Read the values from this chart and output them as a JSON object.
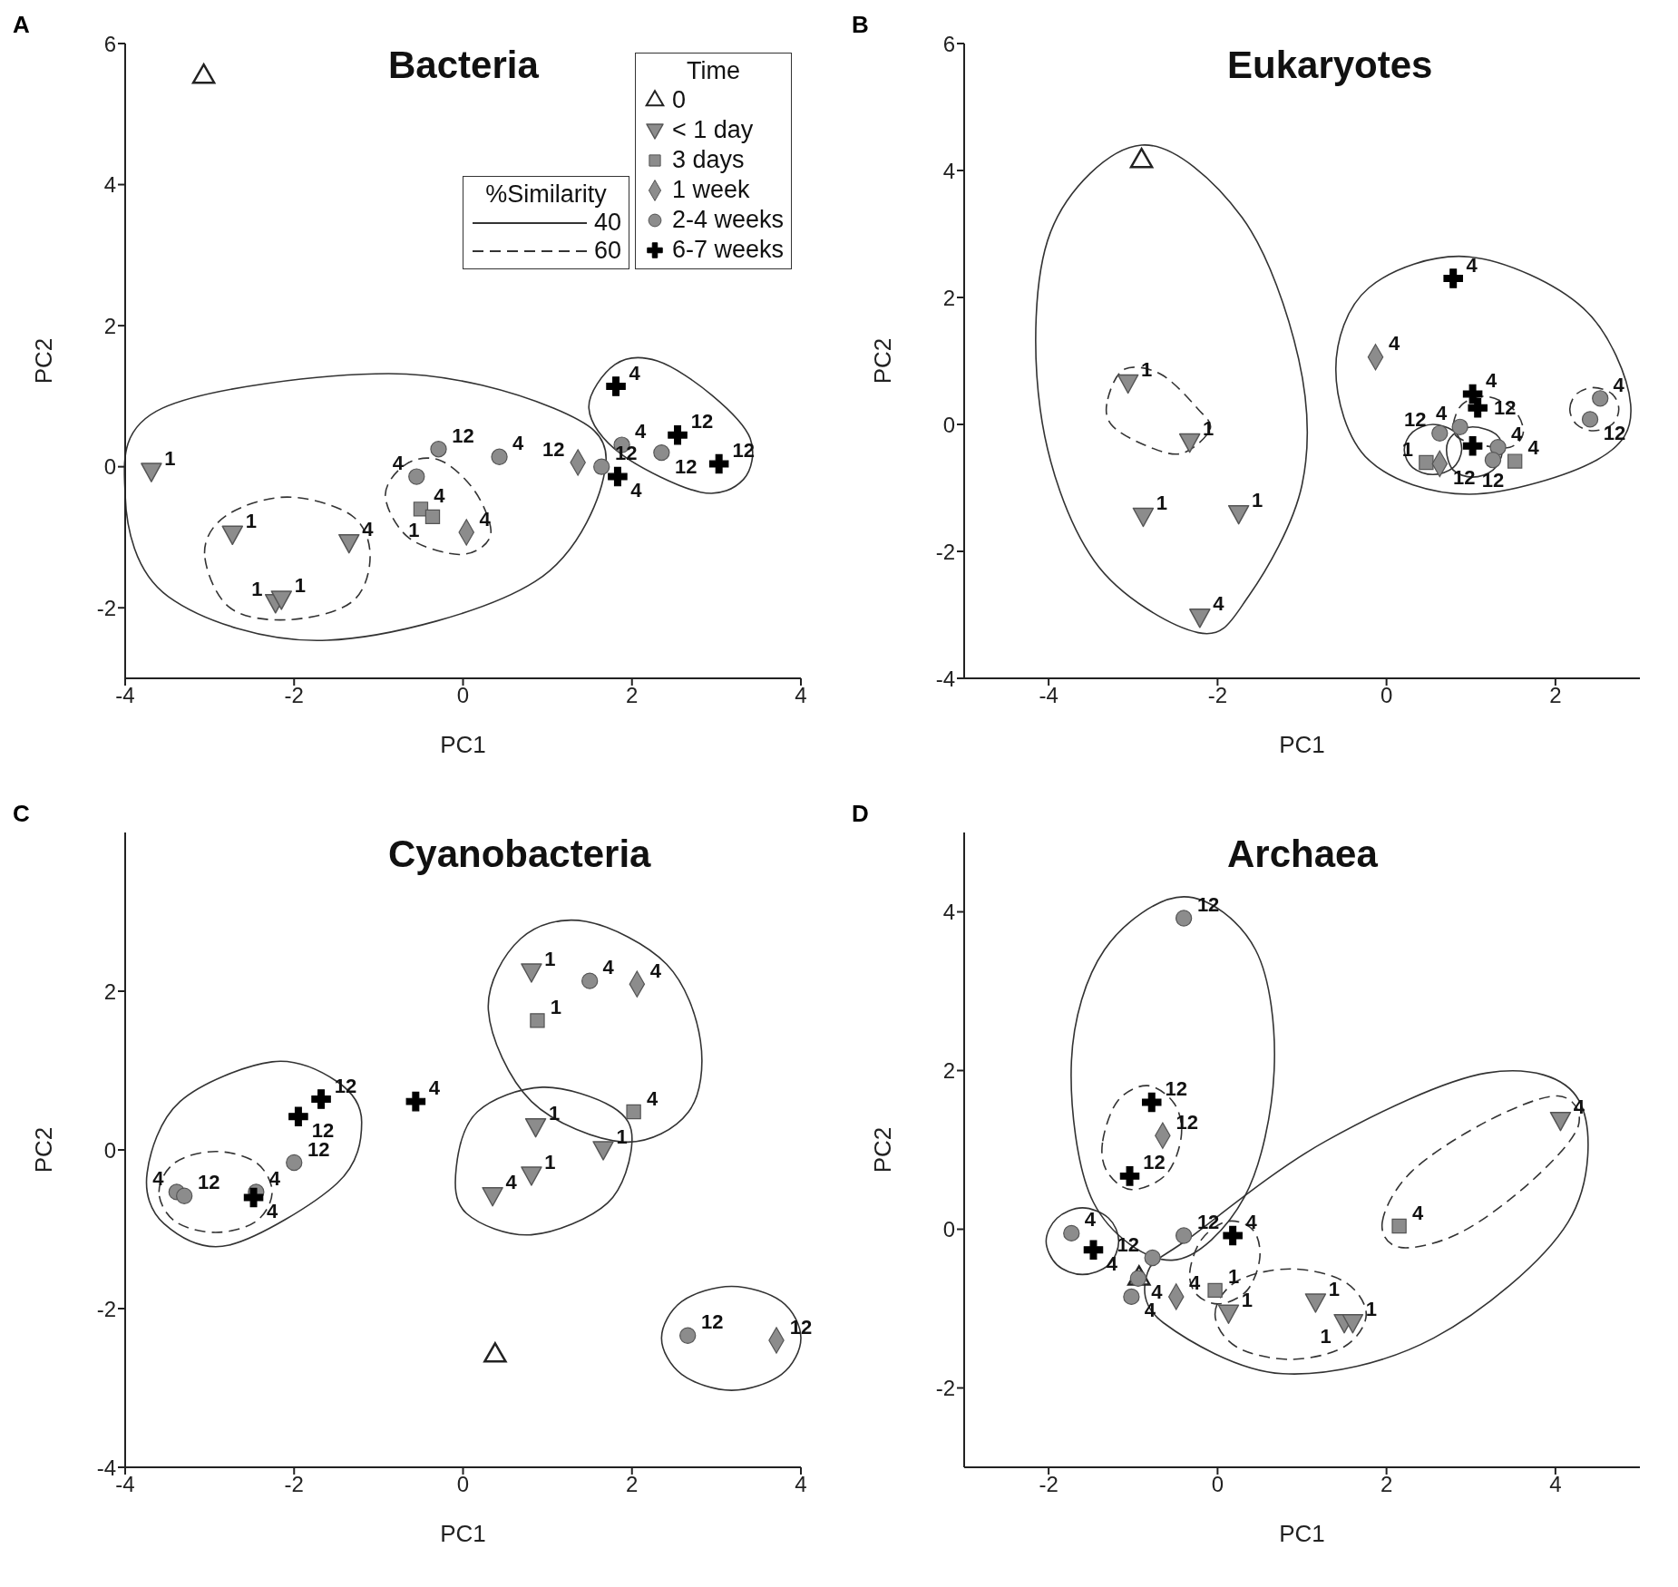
{
  "chart_data": [
    {
      "type": "scatter",
      "title": "Bacteria",
      "xlabel": "PC1",
      "ylabel": "PC2",
      "legend_title": "Time",
      "legend": "top right",
      "xlim": [
        -4,
        4
      ],
      "xticks": [
        -4,
        -2,
        0,
        2,
        4
      ],
      "ylim": [
        -3,
        6
      ],
      "yticks": [
        -2,
        0,
        2,
        4,
        6
      ],
      "annotations": [
        "A",
        "%Similarity",
        "40",
        "60",
        {
          "text": "1",
          "x": -3.69,
          "y": -0.07
        },
        {
          "text": "1",
          "x": -2.73,
          "y": -0.96
        },
        {
          "text": "4",
          "x": -1.35,
          "y": -1.08
        },
        {
          "text": "1",
          "x": -2.22,
          "y": -1.93
        },
        {
          "text": "1",
          "x": -2.15,
          "y": -1.88
        },
        {
          "text": "4",
          "x": -0.5,
          "y": -0.6
        },
        {
          "text": "1",
          "x": -0.36,
          "y": -0.71
        },
        {
          "text": "4",
          "x": 0.04,
          "y": -0.93
        },
        {
          "text": "12",
          "x": 1.36,
          "y": 0.06
        },
        {
          "text": "12",
          "x": -0.29,
          "y": 0.25
        },
        {
          "text": "4",
          "x": 0.43,
          "y": 0.14
        },
        {
          "text": "4",
          "x": -0.55,
          "y": -0.14
        },
        {
          "text": "12",
          "x": 1.64,
          "y": 0.0
        },
        {
          "text": "4",
          "x": 1.88,
          "y": 0.31
        },
        {
          "text": "12",
          "x": 2.35,
          "y": 0.2
        },
        {
          "text": "4",
          "x": 1.81,
          "y": 1.14
        },
        {
          "text": "12",
          "x": 2.54,
          "y": 0.45
        },
        {
          "text": "12",
          "x": 3.03,
          "y": 0.04
        },
        {
          "text": "4",
          "x": 1.83,
          "y": -0.14
        }
      ],
      "series": [
        {
          "name": "0",
          "marker": "triangle",
          "color": "#ffffff",
          "x": [
            -3.07
          ],
          "values": [
            5.53
          ]
        },
        {
          "name": "< 1 day",
          "marker": "triangle-down",
          "color": "#8c8c8c",
          "x": [
            -3.69,
            -2.73,
            -1.35,
            -2.22,
            -2.15
          ],
          "values": [
            -0.07,
            -0.96,
            -1.08,
            -1.93,
            -1.88
          ]
        },
        {
          "name": "3 days",
          "marker": "square",
          "color": "#8c8c8c",
          "x": [
            -0.5,
            -0.36
          ],
          "values": [
            -0.6,
            -0.71
          ]
        },
        {
          "name": "1 week",
          "marker": "diamond",
          "color": "#8c8c8c",
          "x": [
            0.04,
            1.36
          ],
          "values": [
            -0.93,
            0.06
          ]
        },
        {
          "name": "2-4 weeks",
          "marker": "circle",
          "color": "#8c8c8c",
          "x": [
            -0.29,
            0.43,
            -0.55,
            1.64,
            1.88,
            2.35
          ],
          "values": [
            0.25,
            0.14,
            -0.14,
            0.0,
            0.31,
            0.2
          ]
        },
        {
          "name": "6-7 weeks",
          "marker": "cross",
          "color": "#000000",
          "x": [
            1.81,
            2.54,
            3.03,
            1.83
          ],
          "values": [
            1.14,
            0.45,
            0.04,
            -0.14
          ]
        }
      ]
    },
    {
      "type": "scatter",
      "title": "Eukaryotes",
      "xlabel": "PC1",
      "ylabel": "PC2",
      "xlim": [
        -5,
        3
      ],
      "xticks": [
        -4,
        -2,
        0,
        2
      ],
      "ylim": [
        -4,
        6
      ],
      "yticks": [
        -4,
        -2,
        0,
        2,
        4,
        6
      ],
      "annotations": [
        "B",
        {
          "text": "1",
          "x": -3.06,
          "y": 0.65
        },
        {
          "text": "1",
          "x": -2.33,
          "y": -0.28
        },
        {
          "text": "1",
          "x": -2.88,
          "y": -1.45
        },
        {
          "text": "1",
          "x": -1.75,
          "y": -1.41
        },
        {
          "text": "4",
          "x": -2.21,
          "y": -3.04
        },
        {
          "text": "1",
          "x": 0.47,
          "y": -0.6
        },
        {
          "text": "4",
          "x": 1.52,
          "y": -0.58
        },
        {
          "text": "4",
          "x": -0.13,
          "y": 1.06
        },
        {
          "text": "12",
          "x": 0.63,
          "y": -0.62
        },
        {
          "text": "12",
          "x": 0.63,
          "y": -0.14
        },
        {
          "text": "4",
          "x": 0.87,
          "y": -0.04
        },
        {
          "text": "4",
          "x": 1.32,
          "y": -0.36
        },
        {
          "text": "12",
          "x": 1.26,
          "y": -0.56
        },
        {
          "text": "4",
          "x": 2.53,
          "y": 0.41
        },
        {
          "text": "12",
          "x": 2.41,
          "y": 0.08
        },
        {
          "text": "4",
          "x": 0.79,
          "y": 2.3
        },
        {
          "text": "4",
          "x": 1.02,
          "y": 0.48
        },
        {
          "text": "12",
          "x": 1.08,
          "y": 0.26
        }
      ],
      "series": [
        {
          "marker": "triangle",
          "color": "#ffffff",
          "x": [
            -2.9
          ],
          "values": [
            4.15
          ]
        },
        {
          "marker": "triangle-down",
          "color": "#8c8c8c",
          "x": [
            -3.06,
            -2.33,
            -2.88,
            -1.75,
            -2.21
          ],
          "values": [
            0.65,
            -0.28,
            -1.45,
            -1.41,
            -3.04
          ]
        },
        {
          "marker": "square",
          "color": "#8c8c8c",
          "x": [
            0.47,
            1.52
          ],
          "values": [
            -0.6,
            -0.58
          ]
        },
        {
          "marker": "diamond",
          "color": "#8c8c8c",
          "x": [
            -0.13,
            0.63
          ],
          "values": [
            1.06,
            -0.62
          ]
        },
        {
          "marker": "circle",
          "color": "#8c8c8c",
          "x": [
            0.63,
            0.87,
            1.32,
            1.26,
            2.53,
            2.41
          ],
          "values": [
            -0.14,
            -0.04,
            -0.36,
            -0.56,
            0.41,
            0.08
          ]
        },
        {
          "marker": "cross",
          "color": "#000000",
          "x": [
            0.79,
            1.02,
            1.08,
            1.02
          ],
          "values": [
            2.3,
            0.48,
            0.26,
            -0.34
          ]
        }
      ]
    },
    {
      "type": "scatter",
      "title": "Cyanobacteria",
      "xlabel": "PC1",
      "ylabel": "PC2",
      "xlim": [
        -4,
        4
      ],
      "xticks": [
        -4,
        -2,
        0,
        2,
        4
      ],
      "ylim": [
        -4,
        4
      ],
      "yticks": [
        -4,
        -2,
        0,
        2
      ],
      "annotations": [
        "C",
        {
          "text": "1",
          "x": 0.81,
          "y": 2.24
        },
        {
          "text": "1",
          "x": 0.86,
          "y": 0.29
        },
        {
          "text": "1",
          "x": 0.81,
          "y": -0.32
        },
        {
          "text": "4",
          "x": 0.35,
          "y": -0.58
        },
        {
          "text": "1",
          "x": 1.66,
          "y": 0.0
        },
        {
          "text": "1",
          "x": 0.88,
          "y": 1.63
        },
        {
          "text": "4",
          "x": 2.02,
          "y": 0.48
        },
        {
          "text": "4",
          "x": 2.06,
          "y": 2.09
        },
        {
          "text": "12",
          "x": 3.71,
          "y": -2.4
        },
        {
          "text": "4",
          "x": 1.5,
          "y": 2.13
        },
        {
          "text": "12",
          "x": -2.0,
          "y": -0.16
        },
        {
          "text": "4",
          "x": -3.39,
          "y": -0.53
        },
        {
          "text": "12",
          "x": -3.3,
          "y": -0.58
        },
        {
          "text": "4",
          "x": -2.45,
          "y": -0.53
        },
        {
          "text": "12",
          "x": 2.66,
          "y": -2.34
        },
        {
          "text": "12",
          "x": -1.68,
          "y": 0.64
        },
        {
          "text": "12",
          "x": -1.95,
          "y": 0.42
        },
        {
          "text": "4",
          "x": -0.56,
          "y": 0.61
        },
        {
          "text": "4",
          "x": -2.48,
          "y": -0.6
        }
      ],
      "series": [
        {
          "marker": "triangle",
          "color": "#ffffff",
          "x": [
            0.38
          ],
          "values": [
            -2.59
          ]
        },
        {
          "marker": "triangle-down",
          "color": "#8c8c8c",
          "x": [
            0.81,
            0.86,
            0.81,
            0.35,
            1.66
          ],
          "values": [
            2.24,
            0.29,
            -0.32,
            -0.58,
            0.0
          ]
        },
        {
          "marker": "square",
          "color": "#8c8c8c",
          "x": [
            0.88,
            2.02
          ],
          "values": [
            1.63,
            0.48
          ]
        },
        {
          "marker": "diamond",
          "color": "#8c8c8c",
          "x": [
            2.06,
            3.71
          ],
          "values": [
            2.09,
            -2.4
          ]
        },
        {
          "marker": "circle",
          "color": "#8c8c8c",
          "x": [
            1.5,
            -2.0,
            -3.39,
            -3.3,
            -2.45,
            2.66
          ],
          "values": [
            2.13,
            -0.16,
            -0.53,
            -0.58,
            -0.53,
            -2.34
          ]
        },
        {
          "marker": "cross",
          "color": "#000000",
          "x": [
            -1.68,
            -1.95,
            -0.56,
            -2.48
          ],
          "values": [
            0.64,
            0.42,
            0.61,
            -0.6
          ]
        }
      ]
    },
    {
      "type": "scatter",
      "title": "Archaea",
      "xlabel": "PC1",
      "ylabel": "PC2",
      "xlim": [
        -3,
        5
      ],
      "xticks": [
        -2,
        0,
        2,
        4
      ],
      "ylim": [
        -3,
        5
      ],
      "yticks": [
        -2,
        0,
        2,
        4
      ],
      "annotations": [
        "D",
        {
          "text": "1",
          "x": 0.13,
          "y": -1.06
        },
        {
          "text": "1",
          "x": 1.16,
          "y": -0.92
        },
        {
          "text": "1",
          "x": 1.5,
          "y": -1.18
        },
        {
          "text": "1",
          "x": 1.6,
          "y": -1.18
        },
        {
          "text": "4",
          "x": 4.06,
          "y": 1.37
        },
        {
          "text": "1",
          "x": -0.03,
          "y": -0.77
        },
        {
          "text": "4",
          "x": 2.15,
          "y": 0.04
        },
        {
          "text": "12",
          "x": -0.65,
          "y": 1.18
        },
        {
          "text": "4",
          "x": -0.49,
          "y": -0.85
        },
        {
          "text": "12",
          "x": -0.4,
          "y": 3.92
        },
        {
          "text": "4",
          "x": -1.73,
          "y": -0.05
        },
        {
          "text": "12",
          "x": -0.77,
          "y": -0.36
        },
        {
          "text": "12",
          "x": -0.4,
          "y": -0.08
        },
        {
          "text": "4",
          "x": -0.94,
          "y": -0.62
        },
        {
          "text": "4",
          "x": -1.02,
          "y": -0.85
        },
        {
          "text": "12",
          "x": -0.78,
          "y": 1.6
        },
        {
          "text": "12",
          "x": -1.04,
          "y": 0.67
        },
        {
          "text": "4",
          "x": -1.47,
          "y": -0.26
        },
        {
          "text": "4",
          "x": 0.18,
          "y": -0.08
        }
      ],
      "series": [
        {
          "marker": "triangle",
          "color": "#ffffff",
          "x": [
            -0.93
          ],
          "values": [
            -0.62
          ]
        },
        {
          "marker": "triangle-down",
          "color": "#8c8c8c",
          "x": [
            0.13,
            1.16,
            1.5,
            1.6,
            4.06
          ],
          "values": [
            -1.06,
            -0.92,
            -1.18,
            -1.18,
            1.37
          ]
        },
        {
          "marker": "square",
          "color": "#8c8c8c",
          "x": [
            -0.03,
            2.15
          ],
          "values": [
            -0.77,
            0.04
          ]
        },
        {
          "marker": "diamond",
          "color": "#8c8c8c",
          "x": [
            -0.65,
            -0.49
          ],
          "values": [
            1.18,
            -0.85
          ]
        },
        {
          "marker": "circle",
          "color": "#8c8c8c",
          "x": [
            -0.4,
            -1.73,
            -0.77,
            -0.4,
            -0.94,
            -1.02
          ],
          "values": [
            3.92,
            -0.05,
            -0.36,
            -0.08,
            -0.62,
            -0.85
          ]
        },
        {
          "marker": "cross",
          "color": "#000000",
          "x": [
            -0.78,
            -1.04,
            -1.47,
            0.18
          ],
          "values": [
            1.6,
            0.67,
            -0.26,
            -0.08
          ]
        }
      ]
    }
  ]
}
